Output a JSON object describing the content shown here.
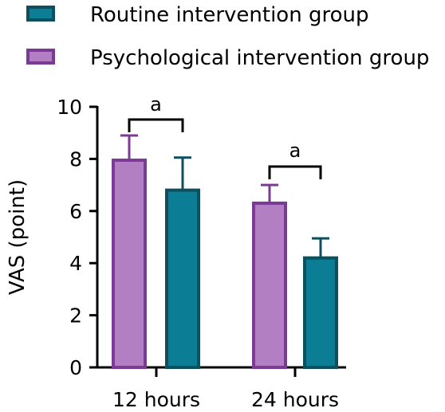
{
  "chart_data": {
    "type": "bar",
    "ylabel": "VAS (point)",
    "ylim": [
      0,
      10
    ],
    "yticks": [
      0,
      2,
      4,
      6,
      8,
      10
    ],
    "categories": [
      "12 hours",
      "24 hours"
    ],
    "series": [
      {
        "name": "Psychological intervention group",
        "values": [
          7.95,
          6.3
        ],
        "errors": [
          0.95,
          0.7
        ],
        "fill": "#b27fc3",
        "stroke": "#7b3a94"
      },
      {
        "name": "Routine intervention group",
        "values": [
          6.8,
          4.2
        ],
        "errors": [
          1.25,
          0.75
        ],
        "fill": "#0b7d94",
        "stroke": "#0d4f5c"
      }
    ],
    "legend": {
      "placement": "top-left",
      "order": [
        "Routine intervention group",
        "Psychological intervention group"
      ]
    },
    "annotations": [
      {
        "category": "12 hours",
        "text": "a",
        "type": "bracket"
      },
      {
        "category": "24 hours",
        "text": "a",
        "type": "bracket"
      }
    ]
  }
}
